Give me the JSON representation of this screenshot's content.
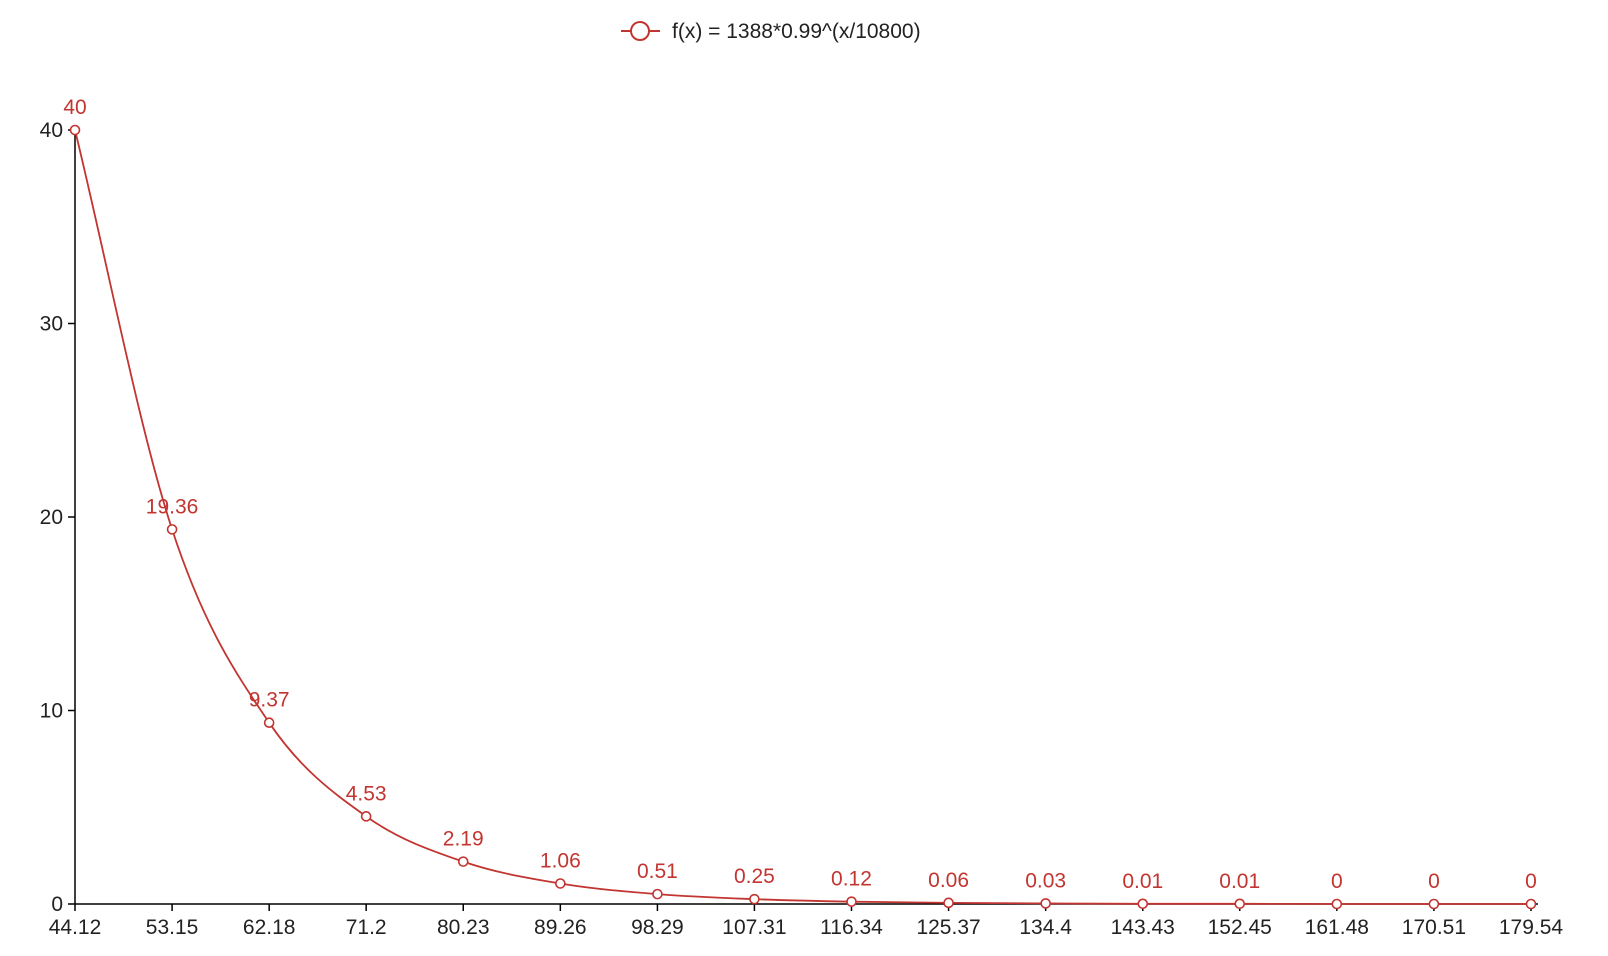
{
  "chart_data": {
    "type": "line",
    "title": "",
    "xlabel": "",
    "ylabel": "",
    "legend": {
      "position": "top-center",
      "marker": "circle-icon"
    },
    "x": [
      44.12,
      53.15,
      62.18,
      71.2,
      80.23,
      89.26,
      98.29,
      107.31,
      116.34,
      125.37,
      134.4,
      143.43,
      152.45,
      161.48,
      170.51,
      179.54
    ],
    "x_tick_labels": [
      "44.12",
      "53.15",
      "62.18",
      "71.2",
      "80.23",
      "89.26",
      "98.29",
      "107.31",
      "116.34",
      "125.37",
      "134.4",
      "143.43",
      "152.45",
      "161.48",
      "170.51",
      "179.54"
    ],
    "y_ticks": [
      0,
      10,
      20,
      30,
      40
    ],
    "y_tick_labels": [
      "0",
      "10",
      "20",
      "30",
      "40"
    ],
    "ylim": [
      0,
      40
    ],
    "grid": false,
    "smooth": true,
    "series": [
      {
        "name": "f(x) = 1388*0.99^(x/10800)",
        "color": "#c23531",
        "values": [
          40,
          19.36,
          9.37,
          4.53,
          2.19,
          1.06,
          0.51,
          0.25,
          0.12,
          0.06,
          0.03,
          0.01,
          0.01,
          0,
          0,
          0
        ],
        "labels": [
          "40",
          "19.36",
          "9.37",
          "4.53",
          "2.19",
          "1.06",
          "0.51",
          "0.25",
          "0.12",
          "0.06",
          "0.03",
          "0.01",
          "0.01",
          "0",
          "0",
          "0"
        ]
      }
    ]
  }
}
